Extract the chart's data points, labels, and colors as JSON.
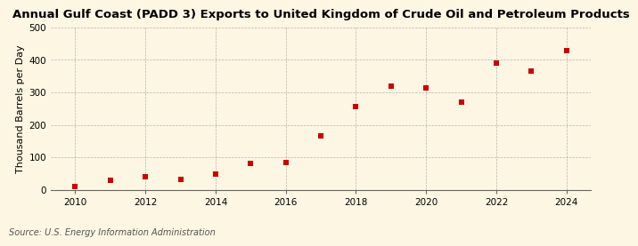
{
  "title": "Annual Gulf Coast (PADD 3) Exports to United Kingdom of Crude Oil and Petroleum Products",
  "ylabel": "Thousand Barrels per Day",
  "source": "Source: U.S. Energy Information Administration",
  "years": [
    2010,
    2011,
    2012,
    2013,
    2014,
    2015,
    2016,
    2017,
    2018,
    2019,
    2020,
    2021,
    2022,
    2023,
    2024
  ],
  "values": [
    10,
    28,
    40,
    32,
    48,
    80,
    85,
    165,
    255,
    320,
    315,
    270,
    390,
    365,
    428
  ],
  "marker_color": "#cc0000",
  "marker": "s",
  "marker_size": 4,
  "background_color": "#fdf6e3",
  "grid_color": "#999999",
  "ylim": [
    0,
    500
  ],
  "yticks": [
    0,
    100,
    200,
    300,
    400,
    500
  ],
  "xticks": [
    2010,
    2012,
    2014,
    2016,
    2018,
    2020,
    2022,
    2024
  ],
  "title_fontsize": 9.5,
  "ylabel_fontsize": 8,
  "tick_fontsize": 7.5,
  "source_fontsize": 7
}
